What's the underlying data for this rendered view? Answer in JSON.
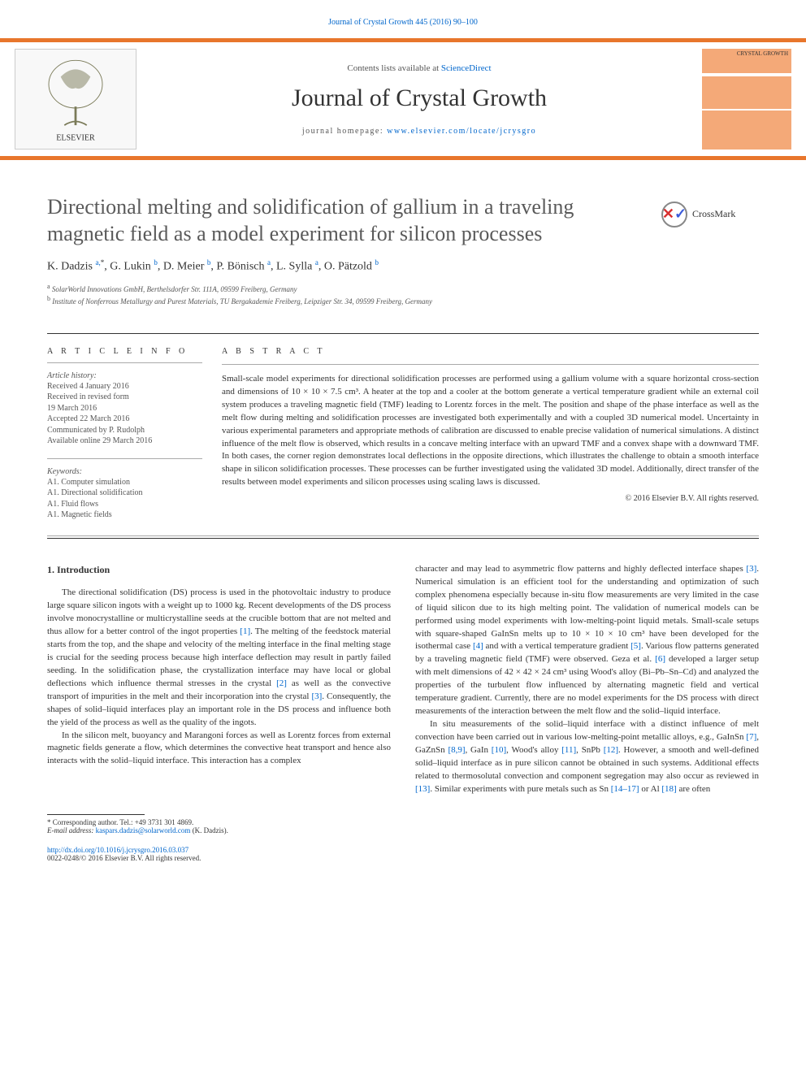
{
  "header": {
    "citation_link": "Journal of Crystal Growth 445 (2016) 90–100",
    "contents_prefix": "Contents lists available at ",
    "contents_link": "ScienceDirect",
    "journal_name": "Journal of Crystal Growth",
    "homepage_prefix": "journal homepage: ",
    "homepage_url": "www.elsevier.com/locate/jcrysgro",
    "cover_brand": "CRYSTAL GROWTH",
    "publisher_logo_label": "ELSEVIER"
  },
  "article": {
    "title": "Directional melting and solidification of gallium in a traveling magnetic field as a model experiment for silicon processes",
    "crossmark_label": "CrossMark",
    "authors_html": "K. Dadzis <sup>a,</sup><sup class='star-sup'>*</sup>, G. Lukin <sup>b</sup>, D. Meier <sup>b</sup>, P. Bönisch <sup>a</sup>, L. Sylla <sup>a</sup>, O. Pätzold <sup>b</sup>",
    "affiliations": [
      {
        "sup": "a",
        "text": "SolarWorld Innovations GmbH, Berthelsdorfer Str. 111A, 09599 Freiberg, Germany"
      },
      {
        "sup": "b",
        "text": "Institute of Nonferrous Metallurgy and Purest Materials, TU Bergakademie Freiberg, Leipziger Str. 34, 09599 Freiberg, Germany"
      }
    ]
  },
  "info": {
    "heading": "A R T I C L E  I N F O",
    "history_label": "Article history:",
    "history": [
      "Received 4 January 2016",
      "Received in revised form",
      "19 March 2016",
      "Accepted 22 March 2016",
      "Communicated by P. Rudolph",
      "Available online 29 March 2016"
    ],
    "keywords_label": "Keywords:",
    "keywords": [
      "A1. Computer simulation",
      "A1. Directional solidification",
      "A1. Fluid flows",
      "A1. Magnetic fields"
    ]
  },
  "abstract": {
    "heading": "A B S T R A C T",
    "text": "Small-scale model experiments for directional solidification processes are performed using a gallium volume with a square horizontal cross-section and dimensions of 10 × 10 × 7.5 cm³. A heater at the top and a cooler at the bottom generate a vertical temperature gradient while an external coil system produces a traveling magnetic field (TMF) leading to Lorentz forces in the melt. The position and shape of the phase interface as well as the melt flow during melting and solidification processes are investigated both experimentally and with a coupled 3D numerical model. Uncertainty in various experimental parameters and appropriate methods of calibration are discussed to enable precise validation of numerical simulations. A distinct influence of the melt flow is observed, which results in a concave melting interface with an upward TMF and a convex shape with a downward TMF. In both cases, the corner region demonstrates local deflections in the opposite directions, which illustrates the challenge to obtain a smooth interface shape in silicon solidification processes. These processes can be further investigated using the validated 3D model. Additionally, direct transfer of the results between model experiments and silicon processes using scaling laws is discussed.",
    "copyright": "© 2016 Elsevier B.V. All rights reserved."
  },
  "body": {
    "section_heading": "1.  Introduction",
    "col1_paras": [
      "The directional solidification (DS) process is used in the photovoltaic industry to produce large square silicon ingots with a weight up to 1000 kg. Recent developments of the DS process involve monocrystalline or multicrystalline seeds at the crucible bottom that are not melted and thus allow for a better control of the ingot properties <a class='ref-link' href='#'>[1]</a>. The melting of the feedstock material starts from the top, and the shape and velocity of the melting interface in the final melting stage is crucial for the seeding process because high interface deflection may result in partly failed seeding. In the solidification phase, the crystallization interface may have local or global deflections which influence thermal stresses in the crystal <a class='ref-link' href='#'>[2]</a> as well as the convective transport of impurities in the melt and their incorporation into the crystal <a class='ref-link' href='#'>[3]</a>. Consequently, the shapes of solid–liquid interfaces play an important role in the DS process and influence both the yield of the process as well as the quality of the ingots.",
      "In the silicon melt, buoyancy and Marangoni forces as well as Lorentz forces from external magnetic fields generate a flow, which determines the convective heat transport and hence also interacts with the solid–liquid interface. This interaction has a complex"
    ],
    "col2_paras": [
      "character and may lead to asymmetric flow patterns and highly deflected interface shapes <a class='ref-link' href='#'>[3]</a>. Numerical simulation is an efficient tool for the understanding and optimization of such complex phenomena especially because in-situ flow measurements are very limited in the case of liquid silicon due to its high melting point. The validation of numerical models can be performed using model experiments with low-melting-point liquid metals. Small-scale setups with square-shaped GaInSn melts up to 10 × 10 × 10 cm³ have been developed for the isothermal case <a class='ref-link' href='#'>[4]</a> and with a vertical temperature gradient <a class='ref-link' href='#'>[5]</a>. Various flow patterns generated by a traveling magnetic field (TMF) were observed. Geza et al. <a class='ref-link' href='#'>[6]</a> developed a larger setup with melt dimensions of 42 × 42 × 24 cm³ using Wood's alloy (Bi–Pb–Sn–Cd) and analyzed the properties of the turbulent flow influenced by alternating magnetic field and vertical temperature gradient. Currently, there are no model experiments for the DS process with direct measurements of the interaction between the melt flow and the solid–liquid interface.",
      "In situ measurements of the solid–liquid interface with a distinct influence of melt convection have been carried out in various low-melting-point metallic alloys, e.g., GaInSn <a class='ref-link' href='#'>[7]</a>, GaZnSn <a class='ref-link' href='#'>[8,9]</a>, GaIn <a class='ref-link' href='#'>[10]</a>, Wood's alloy <a class='ref-link' href='#'>[11]</a>, SnPb <a class='ref-link' href='#'>[12]</a>. However, a smooth and well-defined solid–liquid interface as in pure silicon cannot be obtained in such systems. Additional effects related to thermosolutal convection and component segregation may also occur as reviewed in <a class='ref-link' href='#'>[13]</a>. Similar experiments with pure metals such as Sn <a class='ref-link' href='#'>[14–17]</a> or Al <a class='ref-link' href='#'>[18]</a> are often"
    ]
  },
  "footnotes": {
    "corr": "* Corresponding author. Tel.: +49 3731 301 4869.",
    "email_label": "E-mail address: ",
    "email": "kaspars.dadzis@solarworld.com",
    "email_suffix": " (K. Dadzis)."
  },
  "bottom": {
    "doi": "http://dx.doi.org/10.1016/j.jcrysgro.2016.03.037",
    "issn_line": "0022-0248/© 2016 Elsevier B.V. All rights reserved."
  },
  "colors": {
    "accent": "#e8762c",
    "link": "#0066cc",
    "text": "#333333"
  }
}
